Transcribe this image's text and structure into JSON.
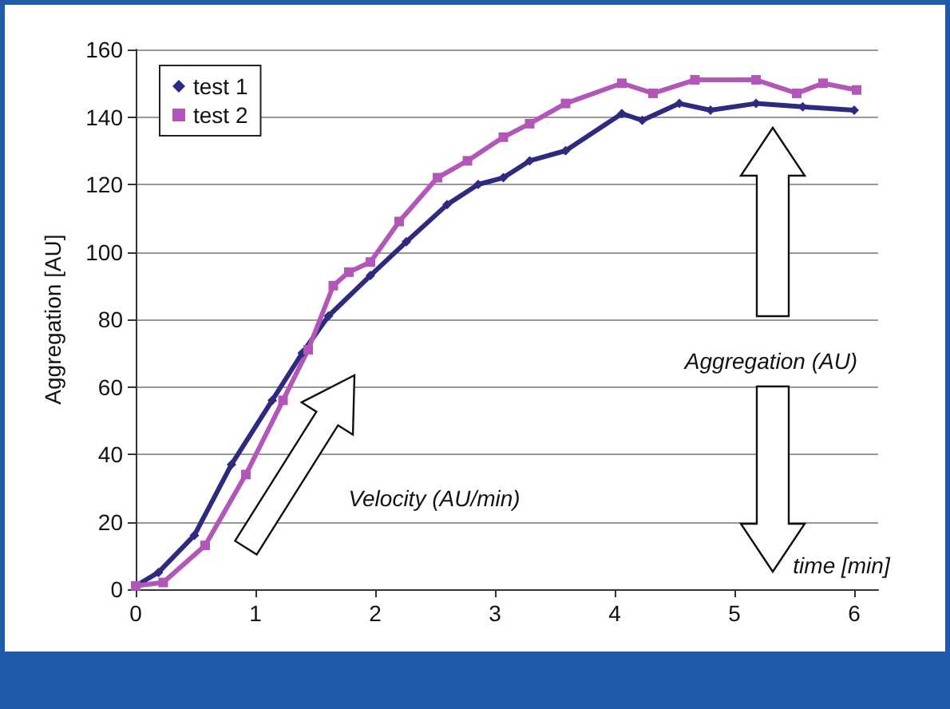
{
  "chart_data": {
    "type": "line",
    "ylabel": "Aggregation [AU]",
    "xlim": [
      0,
      6.2
    ],
    "xticks": [
      0,
      1,
      2,
      3,
      4,
      5,
      6
    ],
    "ylim": [
      0,
      160
    ],
    "yticks": [
      0,
      20,
      40,
      60,
      80,
      100,
      120,
      140,
      160
    ],
    "grid": "y",
    "legend": "top left",
    "annotations": [
      "Velocity (AU/min)",
      "Aggregation (AU)",
      "time [min]"
    ],
    "series": [
      {
        "name": "test 1",
        "color": "#2e2a7f",
        "marker": "diamond",
        "x": [
          0,
          0.19,
          0.49,
          0.8,
          1.14,
          1.39,
          1.61,
          1.96,
          2.26,
          2.6,
          2.86,
          3.07,
          3.29,
          3.59,
          4.06,
          4.23,
          4.54,
          4.8,
          5.18,
          5.57,
          6.0
        ],
        "values": [
          1,
          5,
          16,
          37,
          56,
          70,
          81,
          93,
          103,
          114,
          120,
          122,
          127,
          130,
          141,
          139,
          144,
          142,
          144,
          143,
          142
        ]
      },
      {
        "name": "test 2",
        "color": "#b257b8",
        "marker": "square",
        "x": [
          0,
          0.23,
          0.58,
          0.92,
          1.23,
          1.44,
          1.65,
          1.78,
          1.96,
          2.2,
          2.52,
          2.77,
          3.07,
          3.29,
          3.59,
          4.06,
          4.32,
          4.67,
          5.18,
          5.52,
          5.74,
          6.02
        ],
        "values": [
          1,
          2,
          13,
          34,
          56,
          71,
          90,
          94,
          97,
          109,
          122,
          127,
          134,
          138,
          144,
          150,
          147,
          151,
          151,
          147,
          150,
          148
        ]
      }
    ]
  }
}
